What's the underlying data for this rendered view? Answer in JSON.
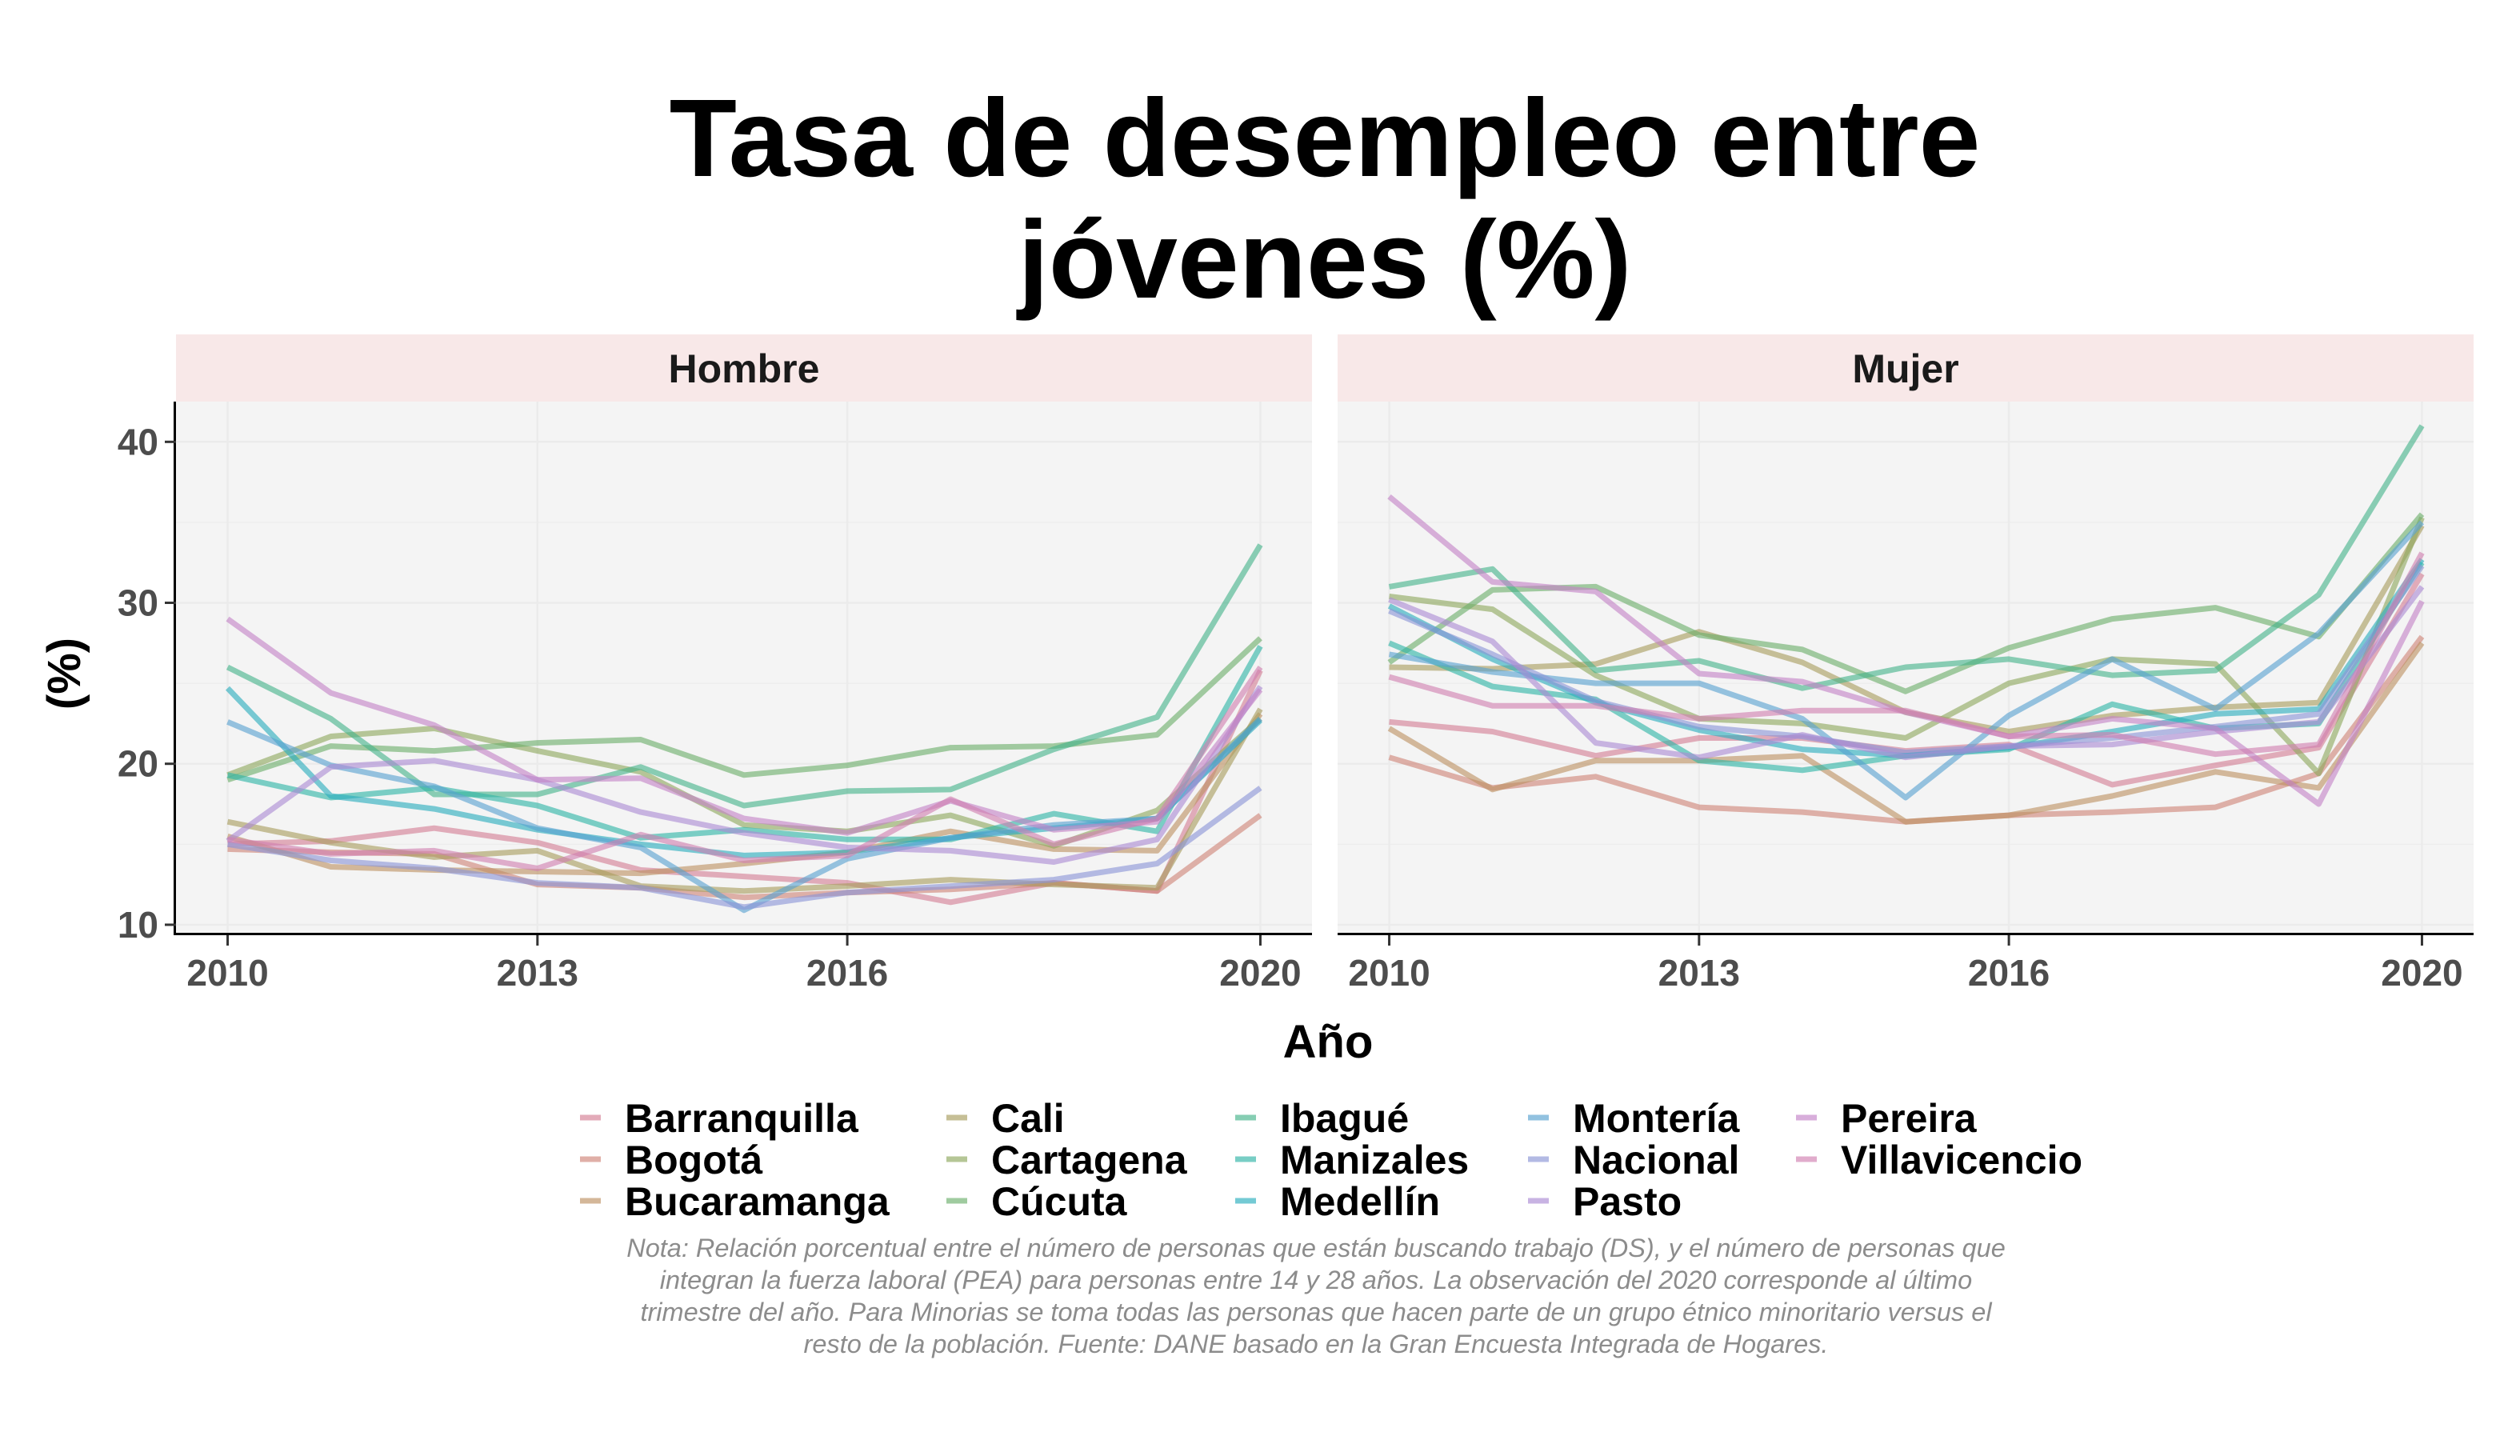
{
  "chart_data": {
    "type": "line",
    "title": "Tasa de desempleo entre jóvenes (%)",
    "title_lines": [
      "Tasa de desempleo entre",
      "jóvenes (%)"
    ],
    "xlabel": "Año",
    "ylabel": "(%)",
    "x": [
      2010,
      2011,
      2012,
      2013,
      2014,
      2015,
      2016,
      2017,
      2018,
      2019,
      2020
    ],
    "x_ticks": [
      "2010",
      "2013",
      "2016",
      "2020"
    ],
    "y_ticks": [
      "10",
      "20",
      "30",
      "40"
    ],
    "ylim": [
      9.5,
      42.5
    ],
    "xlim": [
      2009.5,
      2020.5
    ],
    "grid": true,
    "legend_position": "bottom",
    "panels": [
      {
        "name": "Hombre",
        "series": [
          {
            "name": "Barranquilla",
            "values": [
              15.0,
              15.2,
              16.0,
              15.1,
              13.4,
              13.0,
              12.6,
              11.4,
              12.6,
              12.1,
              25.8
            ]
          },
          {
            "name": "Bogotá",
            "values": [
              14.7,
              14.5,
              14.4,
              12.5,
              12.3,
              11.7,
              12.0,
              12.2,
              12.6,
              12.1,
              16.8
            ]
          },
          {
            "name": "Bucaramanga",
            "values": [
              15.5,
              13.6,
              13.4,
              13.3,
              13.2,
              13.8,
              14.5,
              15.8,
              14.7,
              14.6,
              23.1
            ]
          },
          {
            "name": "Cali",
            "values": [
              16.4,
              15.1,
              14.2,
              14.6,
              12.4,
              12.1,
              12.4,
              12.8,
              12.5,
              12.3,
              23.4
            ]
          },
          {
            "name": "Cartagena",
            "values": [
              19.3,
              21.7,
              22.2,
              20.8,
              19.5,
              16.2,
              15.8,
              16.8,
              14.9,
              17.1,
              22.8
            ]
          },
          {
            "name": "Cúcuta",
            "values": [
              19.0,
              21.1,
              20.8,
              21.3,
              21.5,
              19.3,
              19.9,
              21.0,
              21.1,
              21.8,
              27.8
            ]
          },
          {
            "name": "Ibagué",
            "values": [
              26.0,
              22.8,
              18.1,
              18.1,
              19.8,
              17.4,
              18.3,
              18.4,
              20.9,
              22.9,
              33.6
            ]
          },
          {
            "name": "Manizales",
            "values": [
              19.3,
              17.9,
              18.5,
              17.4,
              15.4,
              15.9,
              15.3,
              15.3,
              16.9,
              15.8,
              27.3
            ]
          },
          {
            "name": "Medellín",
            "values": [
              24.7,
              18.0,
              17.2,
              15.9,
              15.0,
              14.3,
              14.5,
              15.4,
              16.0,
              16.6,
              22.7
            ]
          },
          {
            "name": "Montería",
            "values": [
              22.6,
              19.9,
              18.6,
              16.0,
              14.8,
              10.9,
              14.1,
              15.4,
              16.2,
              16.6,
              22.8
            ]
          },
          {
            "name": "Nacional",
            "values": [
              15.0,
              14.0,
              13.5,
              12.6,
              12.3,
              11.1,
              12.0,
              12.4,
              12.8,
              13.8,
              18.5
            ]
          },
          {
            "name": "Pasto",
            "values": [
              15.2,
              19.8,
              20.2,
              19.0,
              17.0,
              15.7,
              14.8,
              14.6,
              13.9,
              15.3,
              24.8
            ]
          },
          {
            "name": "Pereira",
            "values": [
              29.0,
              24.4,
              22.4,
              19.0,
              19.1,
              16.6,
              15.7,
              17.7,
              15.9,
              16.4,
              24.6
            ]
          },
          {
            "name": "Villavicencio",
            "values": [
              15.3,
              14.4,
              14.6,
              13.5,
              15.6,
              14.0,
              14.3,
              17.8,
              15.0,
              16.6,
              26.0
            ]
          }
        ]
      },
      {
        "name": "Mujer",
        "series": [
          {
            "name": "Barranquilla",
            "values": [
              22.6,
              22.0,
              20.5,
              21.6,
              21.6,
              20.8,
              21.2,
              18.7,
              19.9,
              21.0,
              31.8
            ]
          },
          {
            "name": "Bogotá",
            "values": [
              20.4,
              18.5,
              19.2,
              17.3,
              17.0,
              16.4,
              16.8,
              17.0,
              17.3,
              19.4,
              27.9
            ]
          },
          {
            "name": "Bucaramanga",
            "values": [
              22.2,
              18.4,
              20.2,
              20.2,
              20.5,
              16.4,
              16.8,
              18.0,
              19.5,
              18.5,
              27.5
            ]
          },
          {
            "name": "Cali",
            "values": [
              26.0,
              25.9,
              26.2,
              28.2,
              26.3,
              23.2,
              22.0,
              23.0,
              23.5,
              23.8,
              34.8
            ]
          },
          {
            "name": "Cartagena",
            "values": [
              30.4,
              29.6,
              25.5,
              22.8,
              22.5,
              21.6,
              25.0,
              26.5,
              26.2,
              19.4,
              35.3
            ]
          },
          {
            "name": "Cúcuta",
            "values": [
              26.3,
              30.8,
              31.0,
              28.0,
              27.1,
              24.5,
              27.2,
              29.0,
              29.7,
              27.9,
              35.5
            ]
          },
          {
            "name": "Ibagué",
            "values": [
              31.0,
              32.1,
              25.8,
              26.4,
              24.7,
              26.0,
              26.5,
              25.5,
              25.8,
              30.5,
              41.0
            ]
          },
          {
            "name": "Manizales",
            "values": [
              27.5,
              24.8,
              24.0,
              20.2,
              19.6,
              20.5,
              20.9,
              23.7,
              22.2,
              22.5,
              32.5
            ]
          },
          {
            "name": "Medellín",
            "values": [
              29.8,
              26.5,
              23.8,
              22.1,
              20.9,
              20.5,
              21.0,
              22.0,
              23.1,
              23.4,
              32.7
            ]
          },
          {
            "name": "Montería",
            "values": [
              26.8,
              25.7,
              25.0,
              25.0,
              22.8,
              17.9,
              23.0,
              26.5,
              23.4,
              28.1,
              35.0
            ]
          },
          {
            "name": "Nacional",
            "values": [
              29.5,
              26.8,
              23.9,
              22.3,
              21.7,
              20.7,
              21.1,
              21.6,
              22.3,
              23.1,
              32.3
            ]
          },
          {
            "name": "Pasto",
            "values": [
              30.2,
              27.6,
              21.3,
              20.4,
              21.8,
              20.4,
              21.1,
              21.2,
              22.0,
              22.6,
              31.0
            ]
          },
          {
            "name": "Pereira",
            "values": [
              36.6,
              31.3,
              30.7,
              25.6,
              25.1,
              23.2,
              21.7,
              22.8,
              22.2,
              17.5,
              30.1
            ]
          },
          {
            "name": "Villavicencio",
            "values": [
              25.4,
              23.6,
              23.6,
              22.8,
              23.3,
              23.3,
              21.7,
              21.8,
              20.6,
              21.2,
              33.1
            ]
          }
        ]
      }
    ],
    "legend": [
      {
        "name": "Barranquilla",
        "color": "#d47e94"
      },
      {
        "name": "Bogotá",
        "color": "#cf8478"
      },
      {
        "name": "Bucaramanga",
        "color": "#bd9162"
      },
      {
        "name": "Cali",
        "color": "#a89d5d"
      },
      {
        "name": "Cartagena",
        "color": "#8ea85e"
      },
      {
        "name": "Cúcuta",
        "color": "#6caf6b"
      },
      {
        "name": "Ibagué",
        "color": "#45b38a"
      },
      {
        "name": "Manizales",
        "color": "#2fb4a6"
      },
      {
        "name": "Medellín",
        "color": "#2aadbd"
      },
      {
        "name": "Montería",
        "color": "#58a2d0"
      },
      {
        "name": "Nacional",
        "color": "#8b95d6"
      },
      {
        "name": "Pasto",
        "color": "#ab8ad4"
      },
      {
        "name": "Pereira",
        "color": "#c383c7"
      },
      {
        "name": "Villavicencio",
        "color": "#d17fb0"
      }
    ],
    "note": "Nota: Relación porcentual entre el número de personas que están buscando trabajo (DS), y el número de personas que integran la fuerza laboral (PEA) para personas entre 14 y 28 años. La observación del 2020 corresponde al último trimestre del año. Para Minorias se toma todas las personas que hacen parte de un grupo étnico minoritario versus el resto de la población. Fuente: DANE basado en la Gran Encuesta Integrada de Hogares."
  },
  "colors": {
    "panel_bg": "#f4f4f4",
    "strip_bg": "#f8e8e8",
    "grid": "#ebebeb",
    "axis": "#000000"
  }
}
